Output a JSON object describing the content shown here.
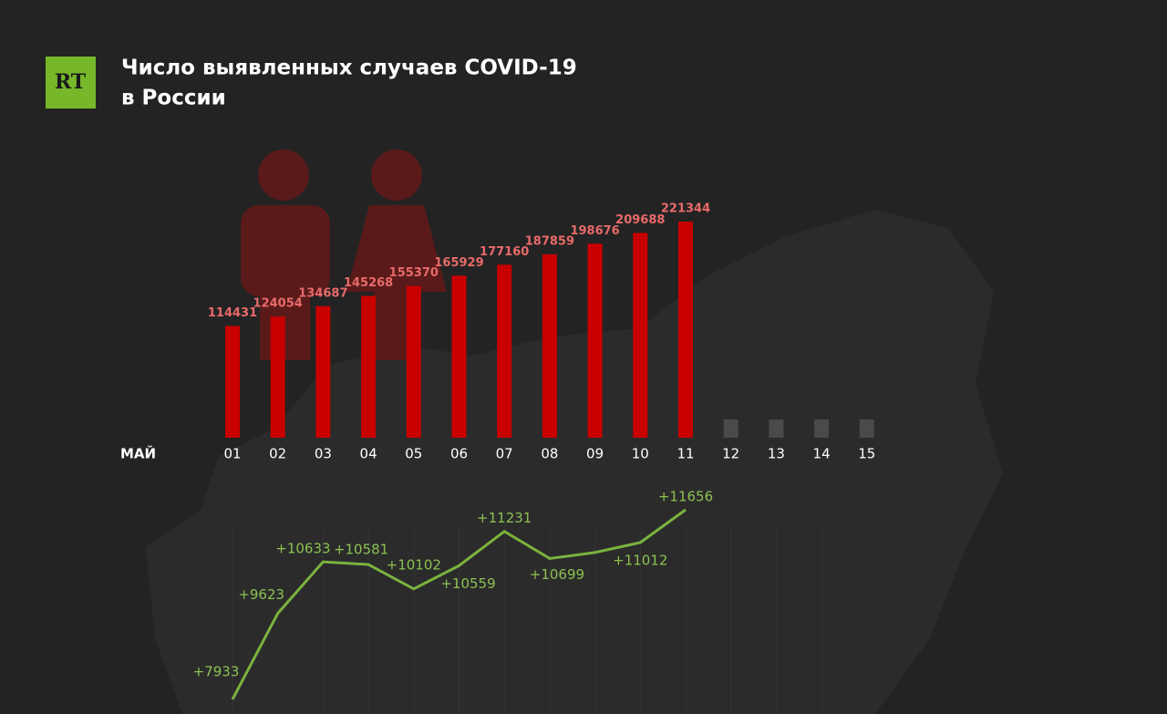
{
  "logo": "RT",
  "chart_data": [
    {
      "type": "bar",
      "title": [
        "Число выявленных случаев COVID-19",
        "в России"
      ],
      "month": "МАЙ",
      "categories": [
        "01",
        "02",
        "03",
        "04",
        "05",
        "06",
        "07",
        "08",
        "09",
        "10",
        "11",
        "12",
        "13",
        "14",
        "15"
      ],
      "values": [
        114431,
        124054,
        134687,
        145268,
        155370,
        165929,
        177160,
        187859,
        198676,
        209688,
        221344,
        null,
        null,
        null,
        null
      ],
      "color": "#c80000",
      "placeholder_color": "#4a4a4a",
      "label_color": "#e86a6a"
    },
    {
      "type": "line",
      "values": [
        7933,
        9623,
        10633,
        10581,
        10102,
        10559,
        11231,
        10699,
        10817,
        11012,
        11656
      ],
      "value_labels": [
        "+7933",
        "+9623",
        "+10633",
        "+10581",
        "+10102",
        "+10559",
        "+11231",
        "+10699",
        null,
        "+11012",
        "+11656"
      ],
      "color": "#7ab33e",
      "label_color": "#8cc152"
    }
  ]
}
